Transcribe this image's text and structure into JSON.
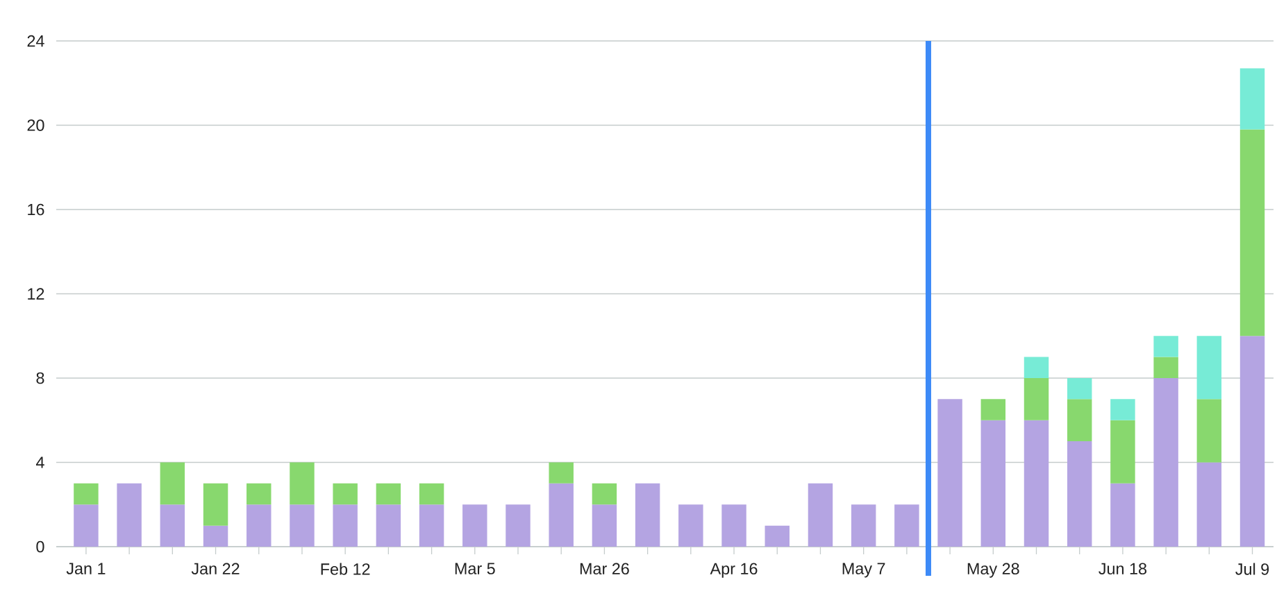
{
  "chart_data": {
    "type": "bar",
    "stacked": true,
    "categories": [
      "Jan 1",
      null,
      null,
      "Jan 22",
      null,
      null,
      "Feb 12",
      null,
      null,
      "Mar 5",
      null,
      null,
      "Mar 26",
      null,
      null,
      "Apr 16",
      null,
      null,
      "May 7",
      null,
      null,
      "May 28",
      null,
      null,
      "Jun 18",
      null,
      null,
      "Jul 9"
    ],
    "series": [
      {
        "color": "#b4a4e2",
        "values": [
          2,
          3,
          2,
          1,
          2,
          2,
          2,
          2,
          2,
          2,
          2,
          3,
          2,
          3,
          2,
          2,
          1,
          3,
          2,
          2,
          7,
          6,
          6,
          5,
          3,
          8,
          4,
          10
        ]
      },
      {
        "color": "#88d86e",
        "values": [
          1,
          0,
          2,
          2,
          1,
          2,
          1,
          1,
          1,
          0,
          0,
          1,
          1,
          0,
          0,
          0,
          0,
          0,
          0,
          0,
          0,
          1,
          2,
          2,
          3,
          1,
          3,
          9.8
        ]
      },
      {
        "color": "#77ebd6",
        "values": [
          0,
          0,
          0,
          0,
          0,
          0,
          0,
          0,
          0,
          0,
          0,
          0,
          0,
          0,
          0,
          0,
          0,
          0,
          0,
          0,
          0,
          0,
          1,
          1,
          1,
          1,
          3,
          2.9
        ]
      }
    ],
    "ylim": [
      0,
      24
    ],
    "yticks": [
      0,
      4,
      8,
      12,
      16,
      20,
      24
    ],
    "grid": "y"
  }
}
